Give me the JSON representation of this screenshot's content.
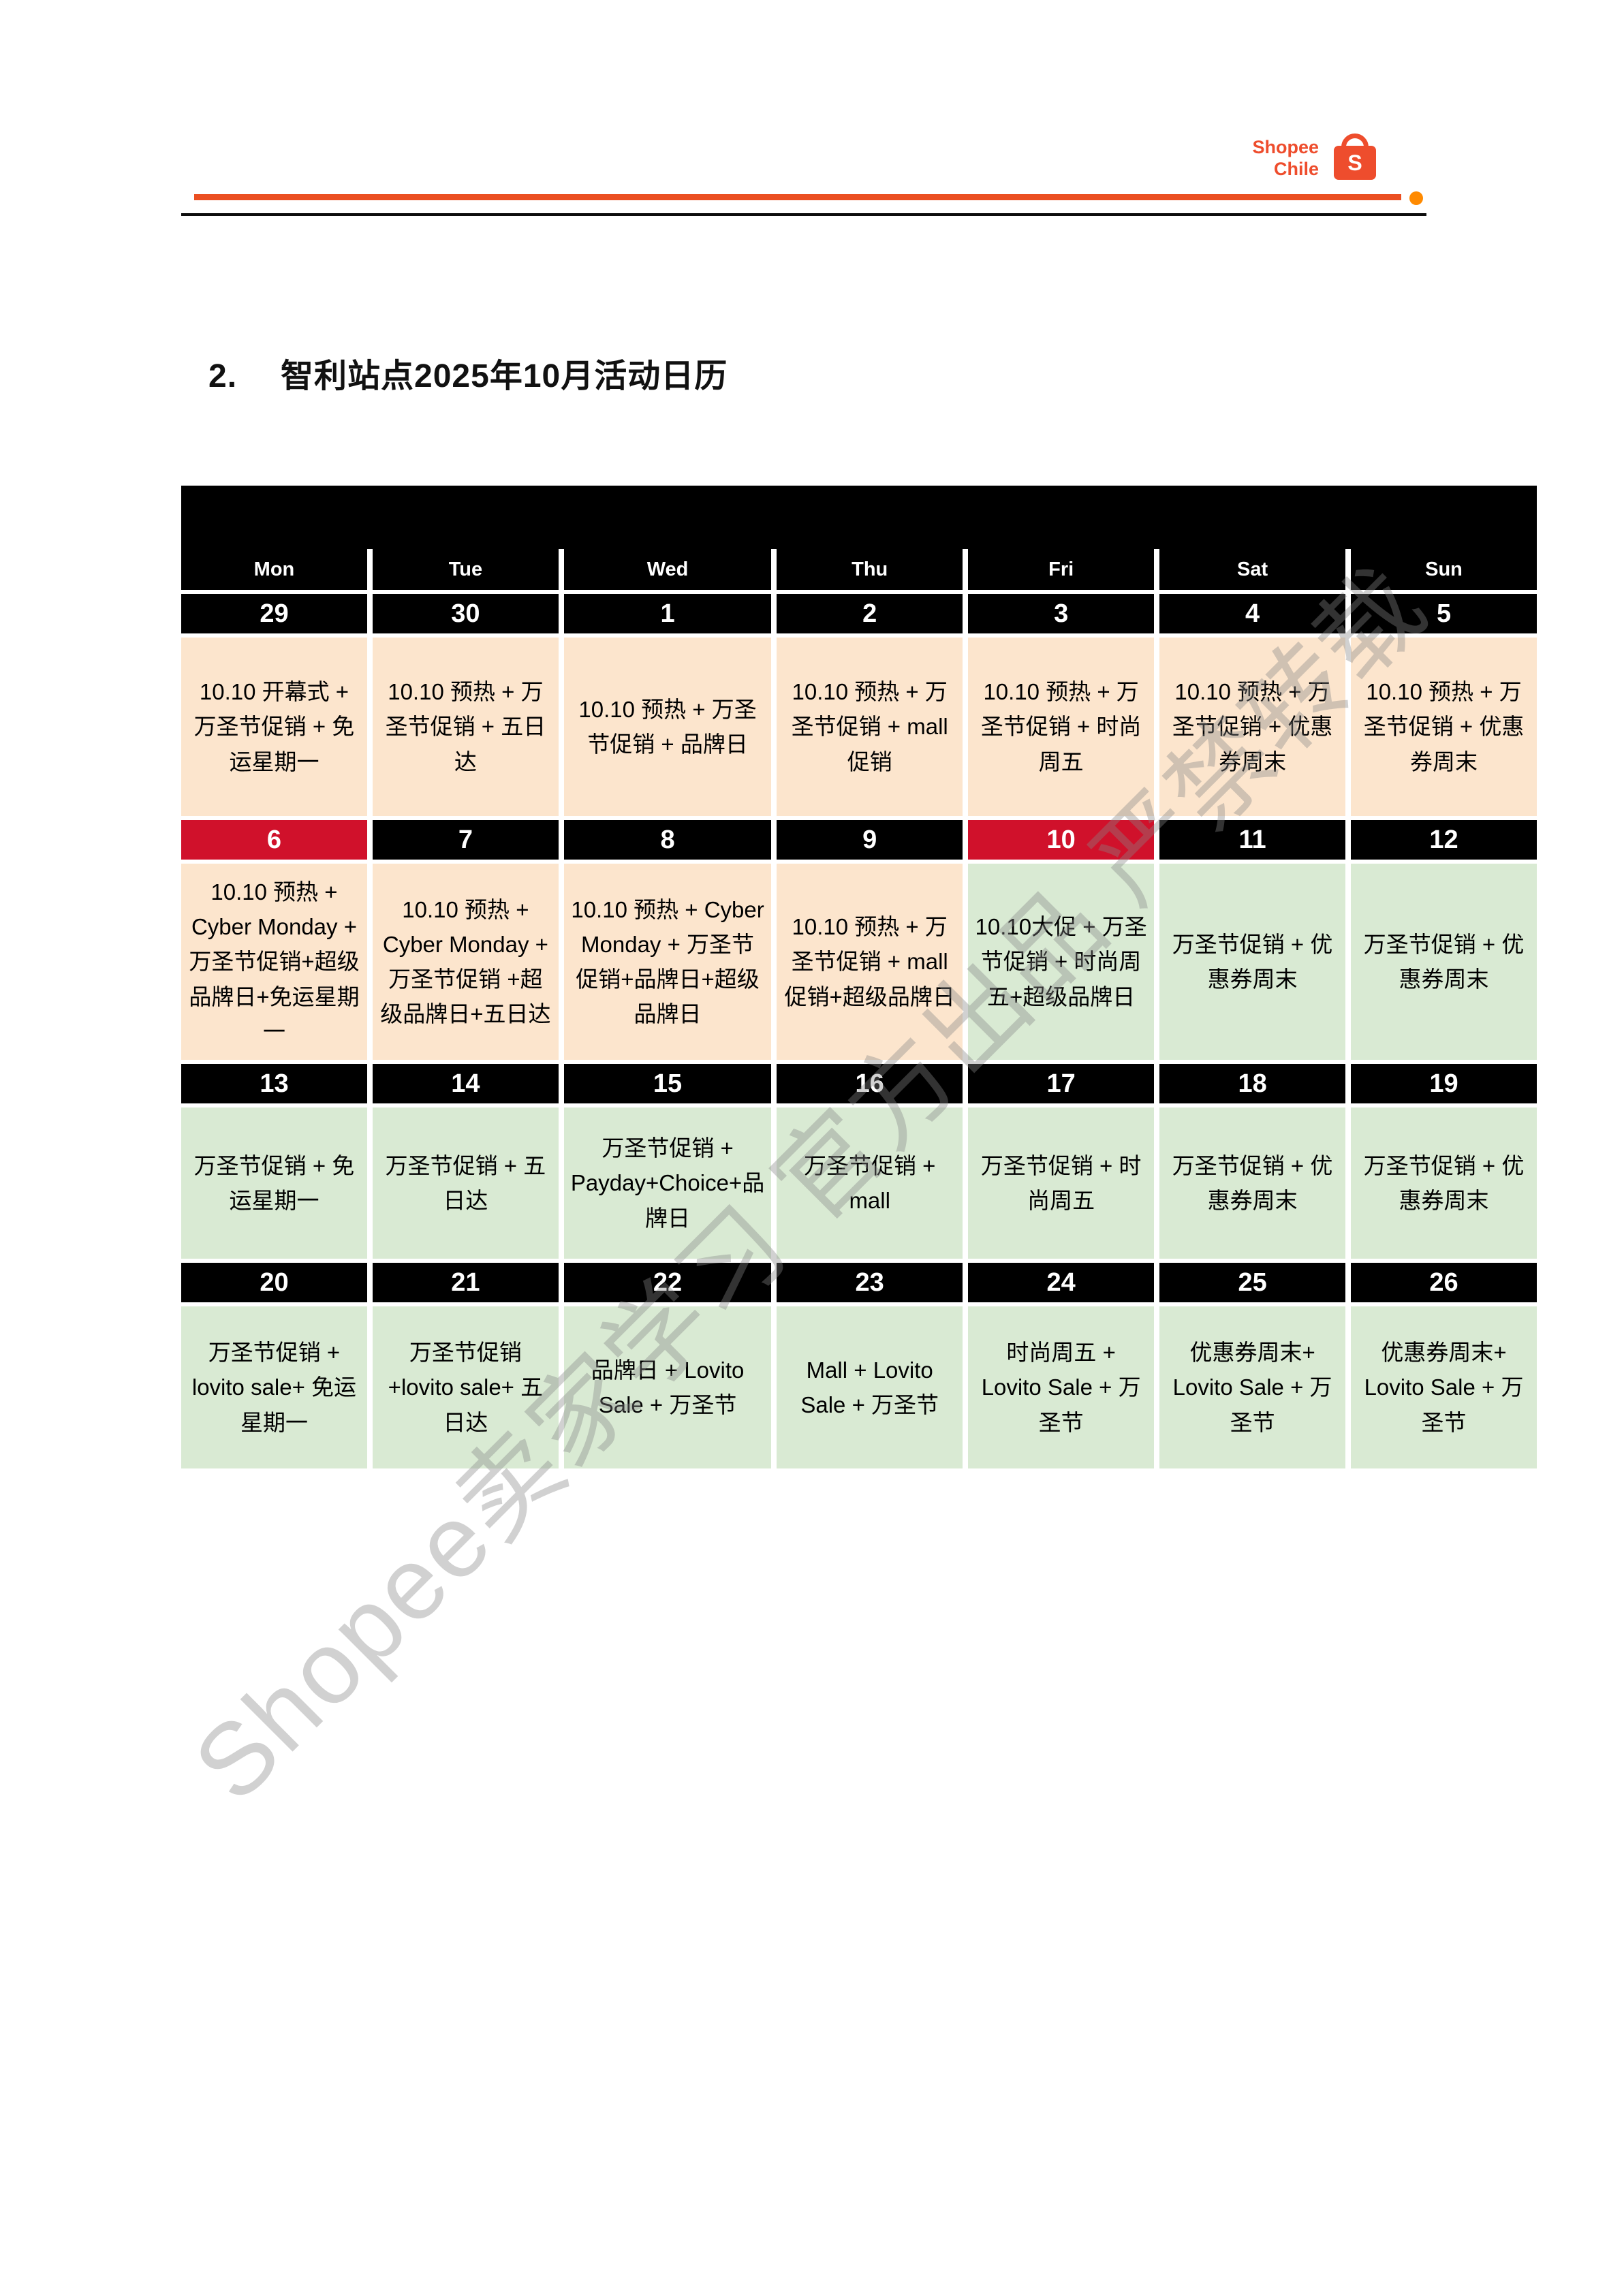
{
  "header": {
    "brand_line1": "Shopee",
    "brand_line2": "Chile",
    "logo_letter": "S",
    "accent_color": "#EE4D2D",
    "rule_color": "#EB4F22",
    "dot_color": "#FF8A00"
  },
  "title": {
    "number": "2.",
    "text": "智利站点2025年10月活动日历"
  },
  "watermark": {
    "text": "Shopee卖家学习 官方出品 严禁转载"
  },
  "calendar": {
    "colors": {
      "black": "#000000",
      "red": "#D0112B",
      "peach": "#FCE5CD",
      "green": "#D9EAD3"
    },
    "day_headers": [
      "Mon",
      "Tue",
      "Wed",
      "Thu",
      "Fri",
      "Sat",
      "Sun"
    ],
    "weeks": [
      {
        "days": [
          {
            "date": "29",
            "date_bg": "black",
            "bg": "peach",
            "content": "10.10 开幕式 + 万圣节促销 + 免运星期一"
          },
          {
            "date": "30",
            "date_bg": "black",
            "bg": "peach",
            "content": "10.10 预热 + 万圣节促销 + 五日达"
          },
          {
            "date": "1",
            "date_bg": "black",
            "bg": "peach",
            "content": "10.10 预热 + 万圣节促销 + 品牌日"
          },
          {
            "date": "2",
            "date_bg": "black",
            "bg": "peach",
            "content": "10.10 预热 + 万圣节促销 + mall促销"
          },
          {
            "date": "3",
            "date_bg": "black",
            "bg": "peach",
            "content": "10.10 预热 + 万圣节促销 + 时尚周五"
          },
          {
            "date": "4",
            "date_bg": "black",
            "bg": "peach",
            "content": "10.10 预热 + 万圣节促销 + 优惠券周末"
          },
          {
            "date": "5",
            "date_bg": "black",
            "bg": "peach",
            "content": "10.10 预热 + 万圣节促销 + 优惠券周末"
          }
        ]
      },
      {
        "days": [
          {
            "date": "6",
            "date_bg": "red",
            "bg": "peach",
            "content": "10.10 预热 + Cyber Monday + 万圣节促销+超级品牌日+免运星期一"
          },
          {
            "date": "7",
            "date_bg": "black",
            "bg": "peach",
            "content": "10.10 预热 + Cyber Monday + 万圣节促销 +超级品牌日+五日达"
          },
          {
            "date": "8",
            "date_bg": "black",
            "bg": "peach",
            "content": "10.10 预热 + Cyber Monday + 万圣节促销+品牌日+超级品牌日"
          },
          {
            "date": "9",
            "date_bg": "black",
            "bg": "peach",
            "content": "10.10 预热 + 万圣节促销 + mall促销+超级品牌日"
          },
          {
            "date": "10",
            "date_bg": "red",
            "bg": "green",
            "content": "10.10大促 + 万圣节促销 + 时尚周五+超级品牌日"
          },
          {
            "date": "11",
            "date_bg": "black",
            "bg": "green",
            "content": "万圣节促销 + 优惠券周末"
          },
          {
            "date": "12",
            "date_bg": "black",
            "bg": "green",
            "content": "万圣节促销 + 优惠券周末"
          }
        ]
      },
      {
        "days": [
          {
            "date": "13",
            "date_bg": "black",
            "bg": "green",
            "content": "万圣节促销 + 免运星期一"
          },
          {
            "date": "14",
            "date_bg": "black",
            "bg": "green",
            "content": "万圣节促销 + 五日达"
          },
          {
            "date": "15",
            "date_bg": "black",
            "bg": "green",
            "content": "万圣节促销 + Payday+Choice+品牌日"
          },
          {
            "date": "16",
            "date_bg": "black",
            "bg": "green",
            "content": "万圣节促销 + mall"
          },
          {
            "date": "17",
            "date_bg": "black",
            "bg": "green",
            "content": "万圣节促销 + 时尚周五"
          },
          {
            "date": "18",
            "date_bg": "black",
            "bg": "green",
            "content": "万圣节促销 + 优惠券周末"
          },
          {
            "date": "19",
            "date_bg": "black",
            "bg": "green",
            "content": "万圣节促销 + 优惠券周末"
          }
        ]
      },
      {
        "days": [
          {
            "date": "20",
            "date_bg": "black",
            "bg": "green",
            "content": "万圣节促销 + lovito sale+ 免运星期一"
          },
          {
            "date": "21",
            "date_bg": "black",
            "bg": "green",
            "content": "万圣节促销 +lovito sale+ 五日达"
          },
          {
            "date": "22",
            "date_bg": "black",
            "bg": "green",
            "content": "品牌日 + Lovito Sale + 万圣节"
          },
          {
            "date": "23",
            "date_bg": "black",
            "bg": "green",
            "content": "Mall + Lovito Sale + 万圣节"
          },
          {
            "date": "24",
            "date_bg": "black",
            "bg": "green",
            "content": "时尚周五 + Lovito Sale + 万圣节"
          },
          {
            "date": "25",
            "date_bg": "black",
            "bg": "green",
            "content": "优惠券周末+ Lovito Sale + 万圣节"
          },
          {
            "date": "26",
            "date_bg": "black",
            "bg": "green",
            "content": "优惠券周末+ Lovito Sale + 万圣节"
          }
        ]
      }
    ]
  }
}
